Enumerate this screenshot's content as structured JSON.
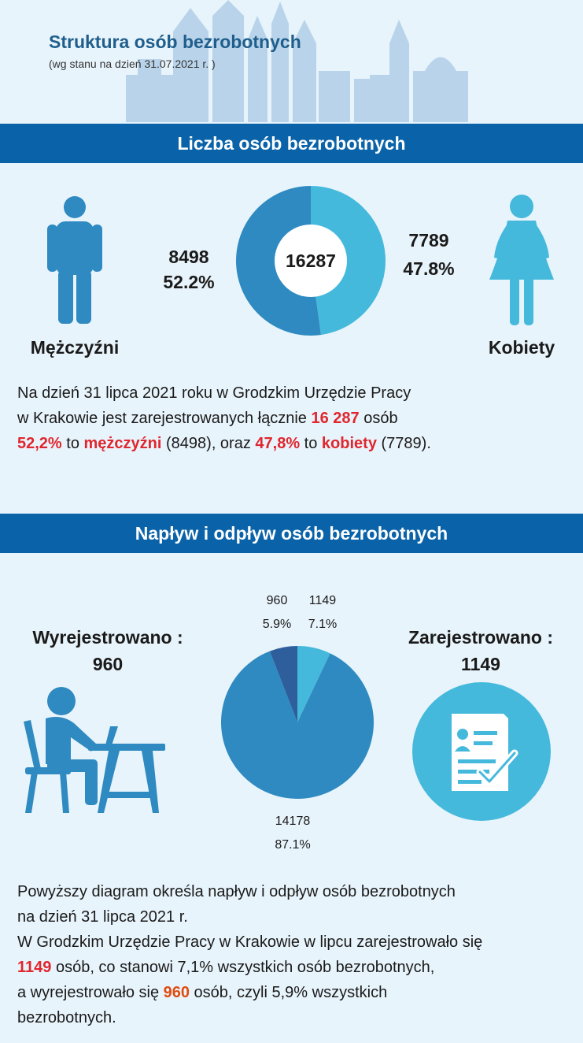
{
  "header": {
    "title": "Struktura osób bezrobotnych",
    "subtitle": "(wg stanu na dzień 31.07.2021 r. )"
  },
  "colors": {
    "banner": "#0a63a9",
    "dark_blue": "#2e8ac0",
    "light_blue": "#45b9dc",
    "navy": "#2e5f9c",
    "highlight": "#e0262e",
    "background": "#e8f4fb"
  },
  "section1": {
    "banner": "Liczba osób bezrobotnych",
    "men_label": "Mężczyźni",
    "women_label": "Kobiety",
    "men_icon": "man-icon",
    "women_icon": "woman-icon",
    "paragraph": {
      "l1": "Na dzień 31 lipca 2021 roku w Grodzkim Urzędzie Pracy",
      "l2a": "w Krakowie jest zarejestrowanych łącznie ",
      "l2b": "16 287",
      "l2c": " osób",
      "l3a": "52,2%",
      "l3b": " to ",
      "l3c": "mężczyźni",
      "l3d": " (8498), oraz ",
      "l3e": "47,8%",
      "l3f": " to ",
      "l3g": "kobiety",
      "l3h": " (7789)."
    }
  },
  "section2": {
    "banner": "Napływ i odpływ osób bezrobotnych",
    "left_label": "Wyrejestrowano :",
    "left_value": "960",
    "right_label": "Zarejestrowano :",
    "right_value": "1149",
    "left_icon": "person-at-desk-icon",
    "right_icon": "registration-document-icon",
    "paragraph": {
      "l1": "Powyższy diagram określa napływ i odpływ osób bezrobotnych",
      "l2": "na dzień 31 lipca 2021 r.",
      "l3": "W Grodzkim Urzędzie Pracy w Krakowie w lipcu zarejestrowało się",
      "l4a": "1149",
      "l4b": " osób, co stanowi 7,1% wszystkich osób bezrobotnych,",
      "l5a": "a wyrejestrowało się ",
      "l5b": "960",
      "l5c": " osób, czyli 5,9% wszystkich",
      "l6": "bezrobotnych."
    }
  },
  "chart_data": [
    {
      "type": "pie",
      "variant": "donut",
      "center_label": "16287",
      "slices": [
        {
          "value": 7789,
          "percent_label": "47.8%",
          "value_label": "7789",
          "color": "#45b9dc"
        },
        {
          "value": 8498,
          "percent_label": "52.2%",
          "value_label": "8498",
          "color": "#2e8ac0"
        }
      ]
    },
    {
      "type": "pie",
      "slices": [
        {
          "value": 1149,
          "percent_label": "7.1%",
          "value_label": "1149",
          "color": "#45b9dc"
        },
        {
          "value": 14178,
          "percent_label": "87.1%",
          "value_label": "14178",
          "color": "#2e8ac0"
        },
        {
          "value": 960,
          "percent_label": "5.9%",
          "value_label": "960",
          "color": "#2e5f9c"
        }
      ]
    }
  ]
}
